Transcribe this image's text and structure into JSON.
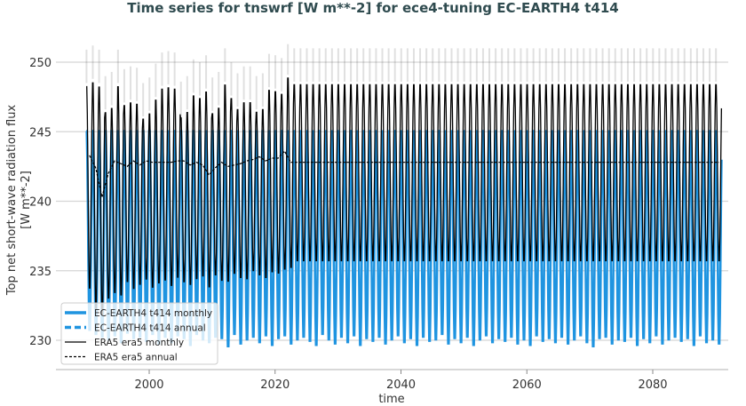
{
  "chart_data": {
    "type": "line",
    "title": "Time series for tnswrf [W m**-2] for ece4-tuning EC-EARTH4 t414",
    "xlabel": "time",
    "ylabel": "Top net short-wave radiation flux [W m**-2]",
    "xlim": [
      1987,
      2094
    ],
    "ylim": [
      227.8,
      251.5
    ],
    "xticks": [
      2000,
      2020,
      2040,
      2060,
      2080
    ],
    "yticks": [
      230,
      235,
      240,
      245,
      250
    ],
    "grid": "horizontal",
    "legend": "bottom-left",
    "series": [
      {
        "name": "EC-EARTH4 t414 monthly",
        "color": "#1f94e0",
        "style": "solid",
        "years": [
          1990,
          2090
        ],
        "seasonal_max": 245.3,
        "yearly_min": [
          230.5,
          230.2,
          230.0,
          229.8,
          230.1,
          229.6,
          230.3,
          229.9,
          230.0,
          229.7,
          230.2,
          229.5,
          230.0,
          229.6,
          230.1,
          229.9,
          229.4,
          230.2,
          229.8,
          229.6,
          230.0,
          229.9,
          229.3,
          230.2,
          229.5,
          229.8,
          230.0,
          229.6,
          230.1,
          229.4,
          229.9,
          230.1,
          229.5,
          229.8,
          230.0,
          229.7,
          229.4,
          230.2,
          229.8,
          229.5,
          230.0,
          229.6,
          230.1,
          229.4,
          229.9,
          229.7,
          230.0,
          229.5,
          229.8,
          230.1,
          229.6,
          229.9,
          229.4,
          230.0,
          229.7,
          229.8,
          230.2,
          229.5,
          229.9,
          229.6,
          230.0,
          229.4,
          229.8,
          230.1,
          229.6,
          229.9,
          229.7,
          230.0,
          229.5,
          229.8,
          229.4,
          230.1,
          229.7,
          229.9,
          229.6,
          230.0,
          229.5,
          229.8,
          230.1,
          229.6,
          229.3,
          229.9,
          230.0,
          229.5,
          229.8,
          229.7,
          230.0,
          229.4,
          229.9,
          229.6,
          230.1,
          229.5,
          229.8,
          230.0,
          229.7,
          229.9,
          229.4,
          230.1,
          229.6,
          229.8,
          229.5
        ]
      },
      {
        "name": "EC-EARTH4 t414 annual",
        "color": "#1f94e0",
        "style": "dashed"
      },
      {
        "name": "ERA5 era5 monthly",
        "color": "#000000",
        "style": "solid",
        "years": [
          1990,
          2022
        ],
        "yearly_max": [
          248.5,
          248.8,
          248.5,
          246.6,
          246.9,
          248.5,
          247.1,
          247.3,
          247.2,
          246.1,
          246.5,
          247.5,
          248.3,
          248.4,
          248.3,
          246.2,
          246.6,
          247.8,
          247.6,
          248.1,
          246.5,
          246.9,
          248.6,
          247.6,
          246.8,
          247.3,
          247.3,
          246.6,
          246.8,
          248.2,
          248.1,
          247.9,
          249.1
        ],
        "yearly_min": [
          233.5,
          232.0,
          231.5,
          232.8,
          233.2,
          233.0,
          234.0,
          233.5,
          233.8,
          234.2,
          233.6,
          233.9,
          234.1,
          233.7,
          234.3,
          234.0,
          233.8,
          234.2,
          234.4,
          233.6,
          234.5,
          234.1,
          234.0,
          234.6,
          234.3,
          234.2,
          234.8,
          234.5,
          234.3,
          234.7,
          234.6,
          234.9,
          235.0
        ],
        "climatology_years": [
          2023,
          2090
        ],
        "climatology_max": 248.6,
        "climatology_min": 235.5
      },
      {
        "name": "ERA5 era5 annual",
        "color": "#000000",
        "style": "dashed",
        "x": [
          1990,
          1991,
          1992,
          1993,
          1994,
          1995,
          1996,
          1997,
          1998,
          1999,
          2000,
          2001,
          2002,
          2003,
          2004,
          2005,
          2006,
          2007,
          2008,
          2009,
          2010,
          2011,
          2012,
          2013,
          2014,
          2015,
          2016,
          2017,
          2018,
          2019,
          2020,
          2021,
          2022,
          2023,
          2090
        ],
        "y": [
          243.3,
          242.4,
          240.3,
          242.0,
          242.9,
          242.7,
          242.5,
          242.9,
          242.6,
          242.9,
          242.8,
          242.8,
          242.8,
          242.8,
          242.9,
          242.9,
          242.6,
          242.8,
          242.6,
          241.9,
          242.4,
          242.8,
          242.5,
          242.6,
          242.7,
          242.9,
          243.0,
          243.2,
          242.9,
          243.1,
          243.1,
          243.6,
          242.8,
          242.8,
          242.8
        ]
      }
    ]
  }
}
